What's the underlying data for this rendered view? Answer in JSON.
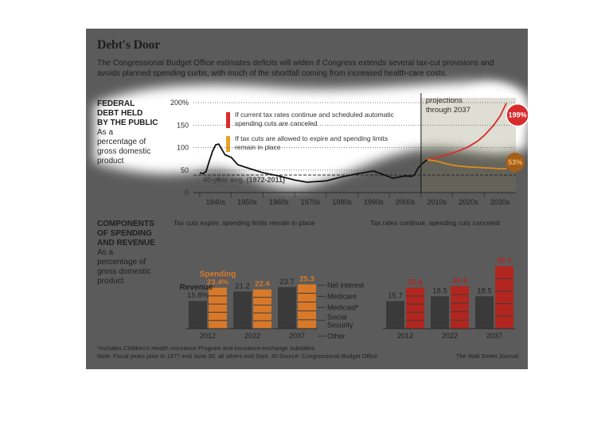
{
  "header": {
    "title": "Debt's Door",
    "subtitle": "The Congressional Budget Office estimates deficits will widen if Congress extends several tax-cut provisions and avoids planned spending curbs, with much of the shortfall coming from increased health-care costs."
  },
  "debt": {
    "heading": [
      "FEDERAL",
      "DEBT HELD",
      "BY THE PUBLIC"
    ],
    "sub": [
      "As a",
      "percentage of",
      "gross domestic",
      "product"
    ],
    "legend1": "If current tax rates continue and scheduled automatic spending cuts are canceled",
    "legend2": "If tax cuts are allowed to expire and spending limits remain in place",
    "avg_label": "40-year avg. (1972-2011)",
    "projection_label": "projections through 2037",
    "end_high": "199%",
    "end_low": "53%"
  },
  "components": {
    "heading": [
      "COMPONENTS",
      "OF SPENDING",
      "AND REVENUE"
    ],
    "sub": [
      "As a",
      "percentage of",
      "gross domestic",
      "product"
    ],
    "left_caption": "Tax cuts expire, spending limits remain in place",
    "right_caption": "Tax rates continue, spending cuts canceled",
    "spending_label": "Spending",
    "revenue_label": "Revenue",
    "legend_items": [
      "Net interest",
      "Medicare",
      "Medicaid*",
      "Social Security",
      "Other"
    ]
  },
  "footer": {
    "note1": "*Includes Children's Health Insurance Program and insurance-exchange subsidies",
    "note2": "Note: Fiscal years prior to 1977 end June 30; all others end Sept. 30   Source: Congressional Budget Office",
    "credit": "The Wall Street Journal"
  },
  "colors": {
    "high": "#d92b2b",
    "low": "#e08a20",
    "revenue": "#3a3a3a",
    "spending_left": "#d8792a",
    "spending_right": "#b2261f"
  },
  "chart_data": [
    {
      "type": "line",
      "title": "",
      "xlabel": "",
      "ylabel": "",
      "ylim": [
        0,
        200
      ],
      "yticks": [
        0,
        50,
        100,
        150,
        200
      ],
      "ytick_labels": [
        "0",
        "50",
        "100",
        "150",
        "200%"
      ],
      "xtick_labels": [
        "1940s",
        "1950s",
        "1960s",
        "1970s",
        "1980s",
        "1990s",
        "2000s",
        "2010s",
        "2020s",
        "2030s"
      ],
      "reference_line": 39,
      "series": [
        {
          "x": [
            1940,
            1941,
            1942,
            1943,
            1944,
            1945,
            1946,
            1947,
            1948,
            1950,
            1952,
            1955,
            1960,
            1965,
            1970,
            1974,
            1980,
            1985,
            1990,
            1995,
            2000,
            2001,
            2005,
            2007,
            2008,
            2009,
            2010,
            2011,
            2012
          ],
          "values": [
            44,
            42,
            47,
            70,
            91,
            106,
            108,
            96,
            84,
            78,
            62,
            55,
            44,
            37,
            28,
            23,
            26,
            35,
            42,
            48,
            35,
            32,
            37,
            36,
            40,
            54,
            62,
            68,
            73
          ]
        },
        {
          "name": "If current tax rates continue and scheduled automatic spending cuts are canceled",
          "x": [
            2012,
            2015,
            2018,
            2020,
            2022,
            2025,
            2028,
            2030,
            2033,
            2035,
            2037
          ],
          "values": [
            73,
            78,
            84,
            88,
            93,
            102,
            115,
            127,
            150,
            170,
            199
          ]
        },
        {
          "name": "If tax cuts are allowed to expire and spending limits remain in place",
          "x": [
            2012,
            2014,
            2016,
            2018,
            2020,
            2022,
            2025,
            2028,
            2030,
            2033,
            2035,
            2037
          ],
          "values": [
            73,
            71,
            68,
            64,
            61,
            59,
            57,
            56,
            55,
            54,
            53,
            53
          ]
        }
      ]
    },
    {
      "type": "bar",
      "title": "Tax cuts expire, spending limits remain in place",
      "categories": [
        "2012",
        "2022",
        "2037"
      ],
      "series": [
        {
          "name": "Revenue",
          "values": [
            15.8,
            21.2,
            23.7
          ],
          "labels": [
            "15.8%",
            "21.2",
            "23.7"
          ]
        },
        {
          "name": "Spending",
          "values": [
            23.4,
            22.4,
            25.3
          ],
          "labels": [
            "23.4%",
            "22.4",
            "25.3"
          ]
        }
      ]
    },
    {
      "type": "bar",
      "title": "Tax rates continue, spending cuts canceled",
      "categories": [
        "2012",
        "2022",
        "2037"
      ],
      "series": [
        {
          "name": "Revenue",
          "values": [
            15.7,
            18.5,
            18.5
          ],
          "labels": [
            "15.7",
            "18.5",
            "18.5"
          ]
        },
        {
          "name": "Spending",
          "values": [
            23.4,
            24.3,
            35.7
          ],
          "labels": [
            "23.4",
            "24.3",
            "35.7"
          ]
        }
      ]
    }
  ]
}
